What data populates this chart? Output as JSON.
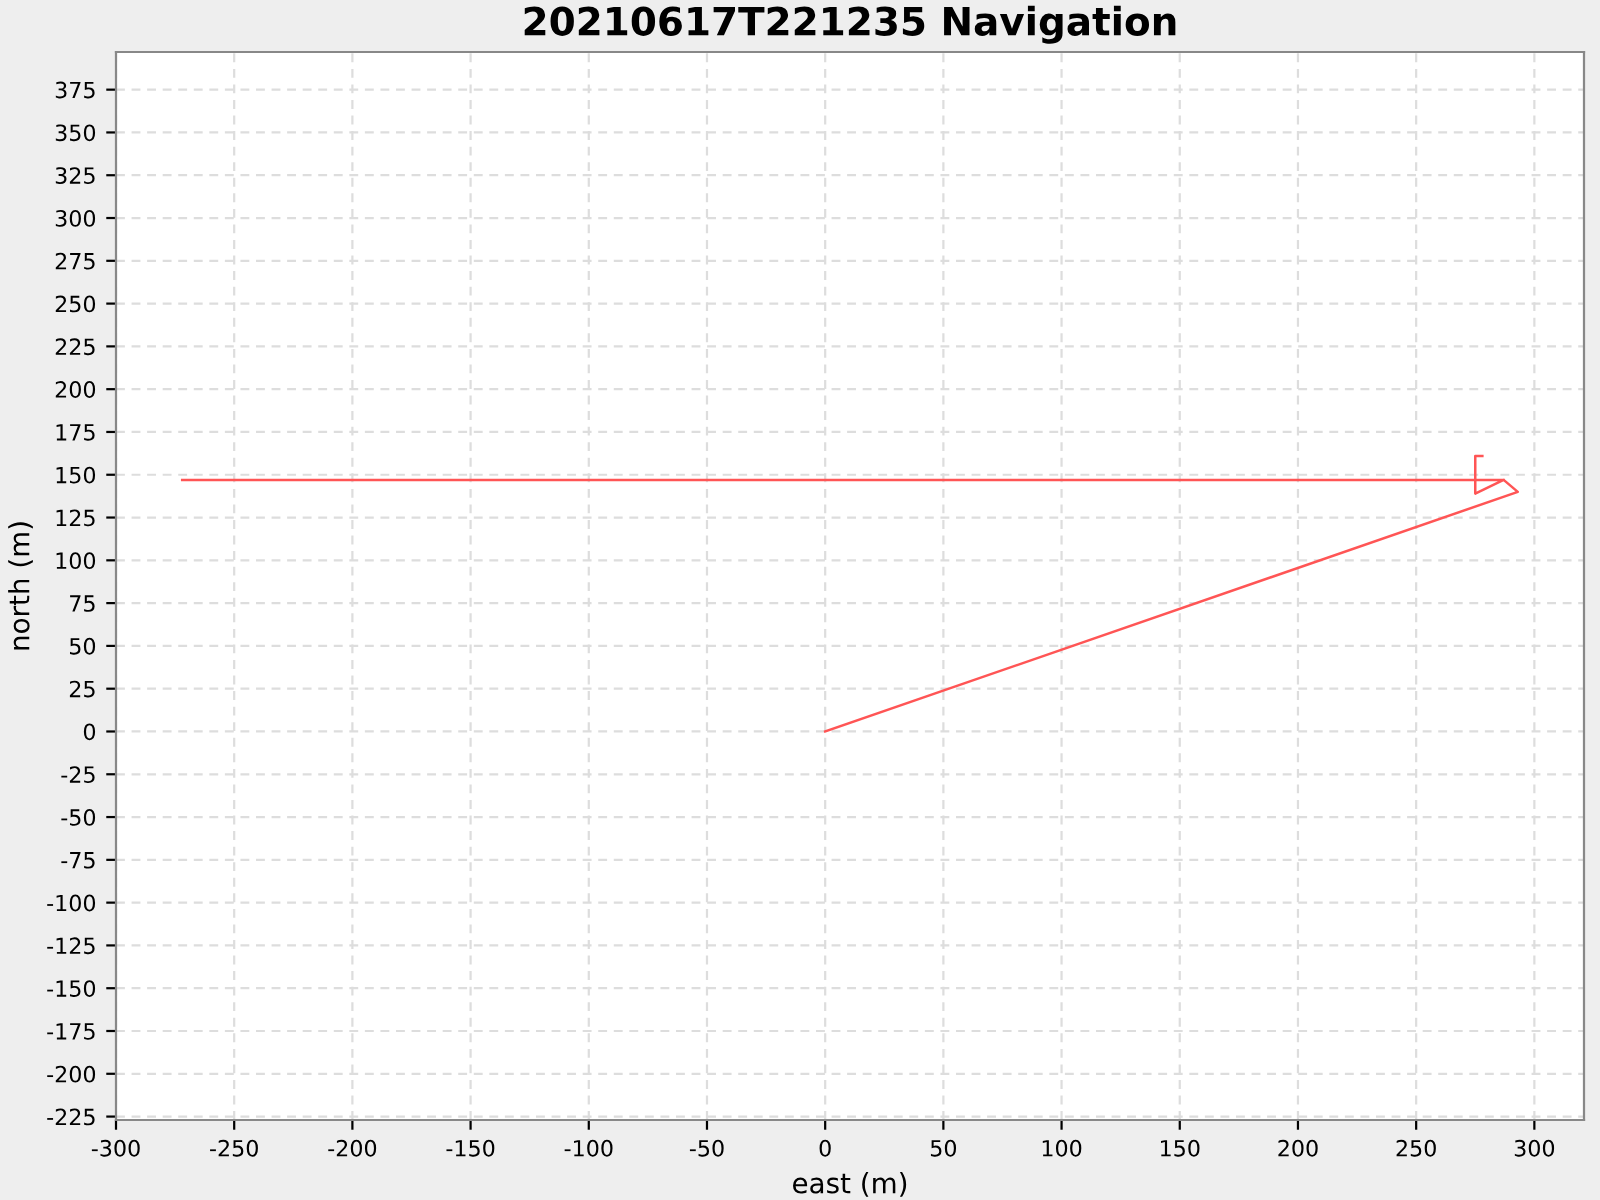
{
  "chart_data": {
    "type": "line",
    "title": "20210617T221235 Navigation",
    "xlabel": "east (m)",
    "ylabel": "north (m)",
    "series": [
      {
        "color": "#ff5555",
        "x": [
          0,
          293,
          287,
          275,
          275,
          278,
          null,
          -272,
          287
        ],
        "values": [
          0,
          140,
          147,
          139,
          161,
          161,
          null,
          147,
          147
        ]
      }
    ],
    "xlim": [
      -300,
      321
    ],
    "ylim": [
      -227,
      397
    ],
    "xticks": [
      -300,
      -250,
      -200,
      -150,
      -100,
      -50,
      0,
      50,
      100,
      150,
      200,
      250,
      300
    ],
    "yticks": [
      -225,
      -200,
      -175,
      -150,
      -125,
      -100,
      -75,
      -50,
      -25,
      0,
      25,
      50,
      75,
      100,
      125,
      150,
      175,
      200,
      225,
      250,
      275,
      300,
      325,
      350,
      375
    ],
    "grid": true,
    "marker": "none",
    "line_style": "solid"
  }
}
